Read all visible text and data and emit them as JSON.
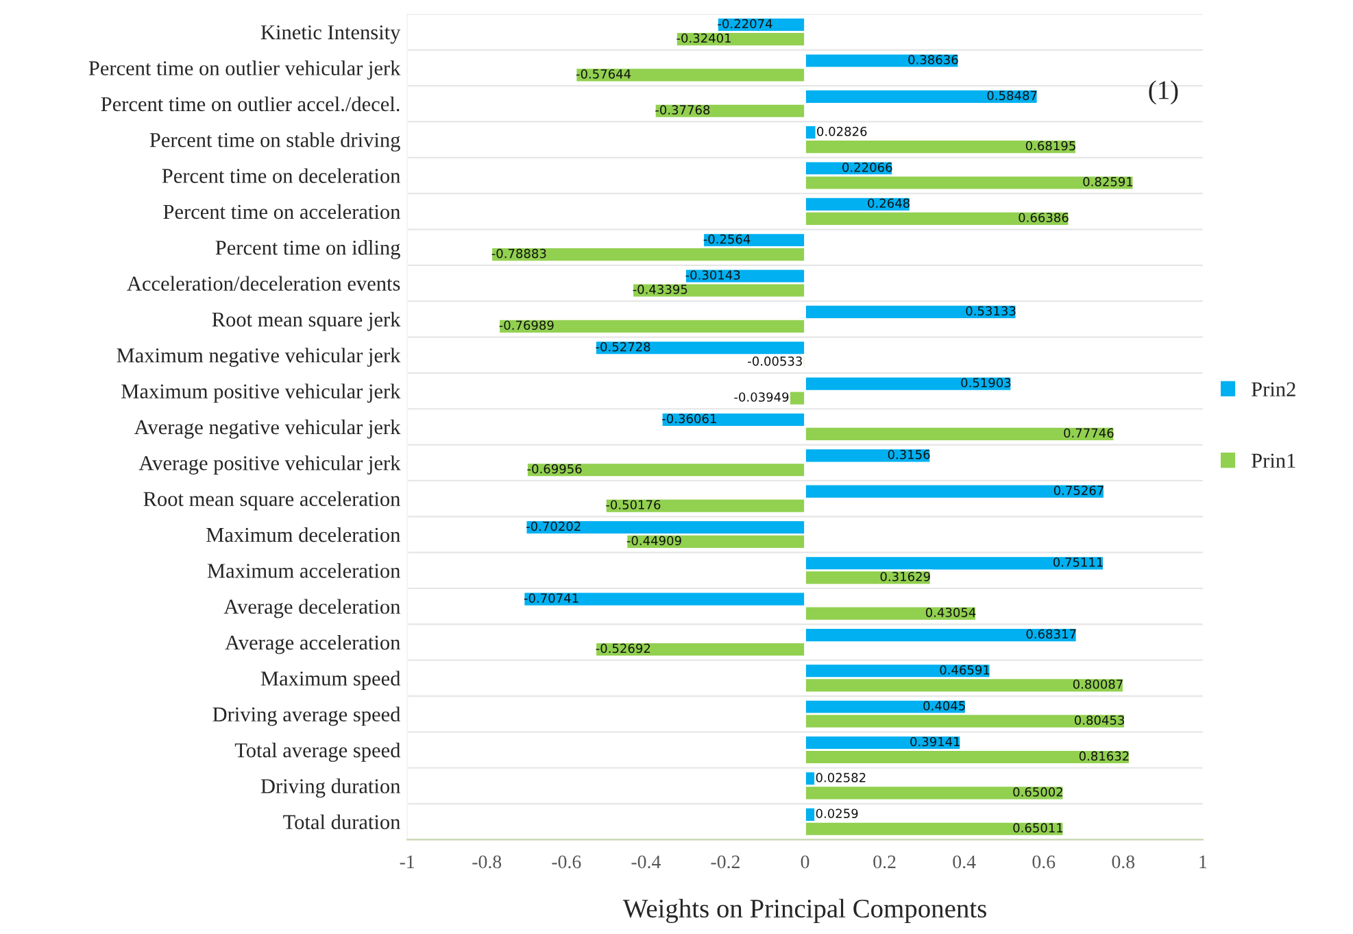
{
  "chart_data": {
    "type": "bar",
    "orientation": "horizontal",
    "xlabel": "Weights on Principal Components",
    "categories": [
      "Kinetic Intensity",
      "Percent time on outlier vehicular jerk",
      "Percent time on outlier accel./decel.",
      "Percent time on stable driving",
      "Percent time on deceleration",
      "Percent time on acceleration",
      "Percent time on idling",
      "Acceleration/deceleration events",
      "Root mean square jerk",
      "Maximum negative vehicular jerk",
      "Maximum positive vehicular jerk",
      "Average negative vehicular jerk",
      "Average positive vehicular jerk",
      "Root mean square acceleration",
      "Maximum deceleration",
      "Maximum acceleration",
      "Average deceleration",
      "Average acceleration",
      "Maximum speed",
      "Driving average speed",
      "Total average speed",
      "Driving duration",
      "Total duration"
    ],
    "series": [
      {
        "name": "Prin2",
        "color": "#00b0f0",
        "values": [
          -0.22074,
          0.38636,
          0.58487,
          0.02826,
          0.22066,
          0.2648,
          -0.2564,
          -0.30143,
          0.53133,
          -0.52728,
          0.51903,
          -0.36061,
          0.3156,
          0.75267,
          -0.70202,
          0.75111,
          -0.70741,
          0.68317,
          0.46591,
          0.4045,
          0.39141,
          0.02582,
          0.0259
        ]
      },
      {
        "name": "Prin1",
        "color": "#92d050",
        "values": [
          -0.32401,
          -0.57644,
          -0.37768,
          0.68195,
          0.82591,
          0.66386,
          -0.78883,
          -0.43395,
          -0.76989,
          -0.00533,
          -0.03949,
          0.77746,
          -0.69956,
          -0.50176,
          -0.44909,
          0.31629,
          0.43054,
          -0.52692,
          0.80087,
          0.80453,
          0.81632,
          0.65002,
          0.65011
        ]
      }
    ],
    "xlim": [
      -1,
      1
    ],
    "xticks": [
      -1,
      -0.8,
      -0.6,
      -0.4,
      -0.2,
      0,
      0.2,
      0.4,
      0.6,
      0.8,
      1
    ],
    "data_labels": true,
    "grid": "y",
    "legend": "right",
    "annotations": [
      "(1)"
    ]
  }
}
